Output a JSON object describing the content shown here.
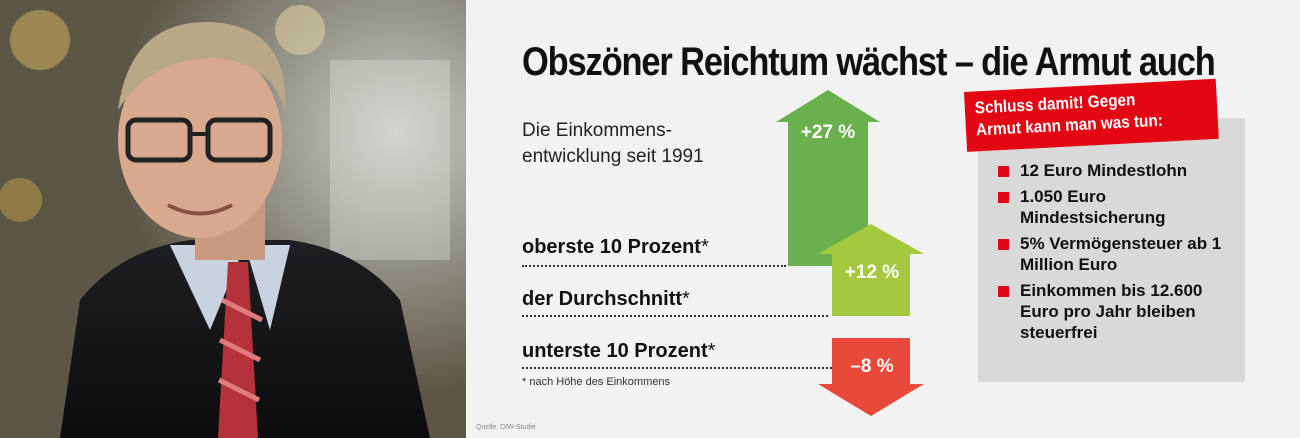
{
  "headline": "Obszöner Reichtum wächst – die Armut auch",
  "subtitle_line1": "Die Einkommens-",
  "subtitle_line2": "entwicklung seit 1991",
  "groups": [
    {
      "label": "oberste 10 Prozent",
      "star": "*",
      "change": "+27 %",
      "value": 27,
      "color": "#6ab04c"
    },
    {
      "label": "der Durchschnitt",
      "star": "*",
      "change": "+12 %",
      "value": 12,
      "color": "#a4c93f"
    },
    {
      "label": "unterste 10 Prozent",
      "star": "*",
      "change": "–8 %",
      "value": -8,
      "color": "#e8493a"
    }
  ],
  "footnote": "* nach Höhe des Einkommens",
  "source": "Quelle: DIW-Studie",
  "callout_line1": "Schluss damit! Gegen",
  "callout_line2": "Armut kann man was tun:",
  "demands": [
    "12 Euro Mindestlohn",
    "1.050 Euro Mindestsicherung",
    "5% Vermögensteuer ab 1 Million Euro",
    "Einkommen bis 12.600 Euro pro Jahr bleiben steuerfrei"
  ],
  "colors": {
    "accent_red": "#e30613",
    "green_top": "#6ab04c",
    "green_avg": "#a4c93f",
    "red_bottom": "#e8493a"
  }
}
